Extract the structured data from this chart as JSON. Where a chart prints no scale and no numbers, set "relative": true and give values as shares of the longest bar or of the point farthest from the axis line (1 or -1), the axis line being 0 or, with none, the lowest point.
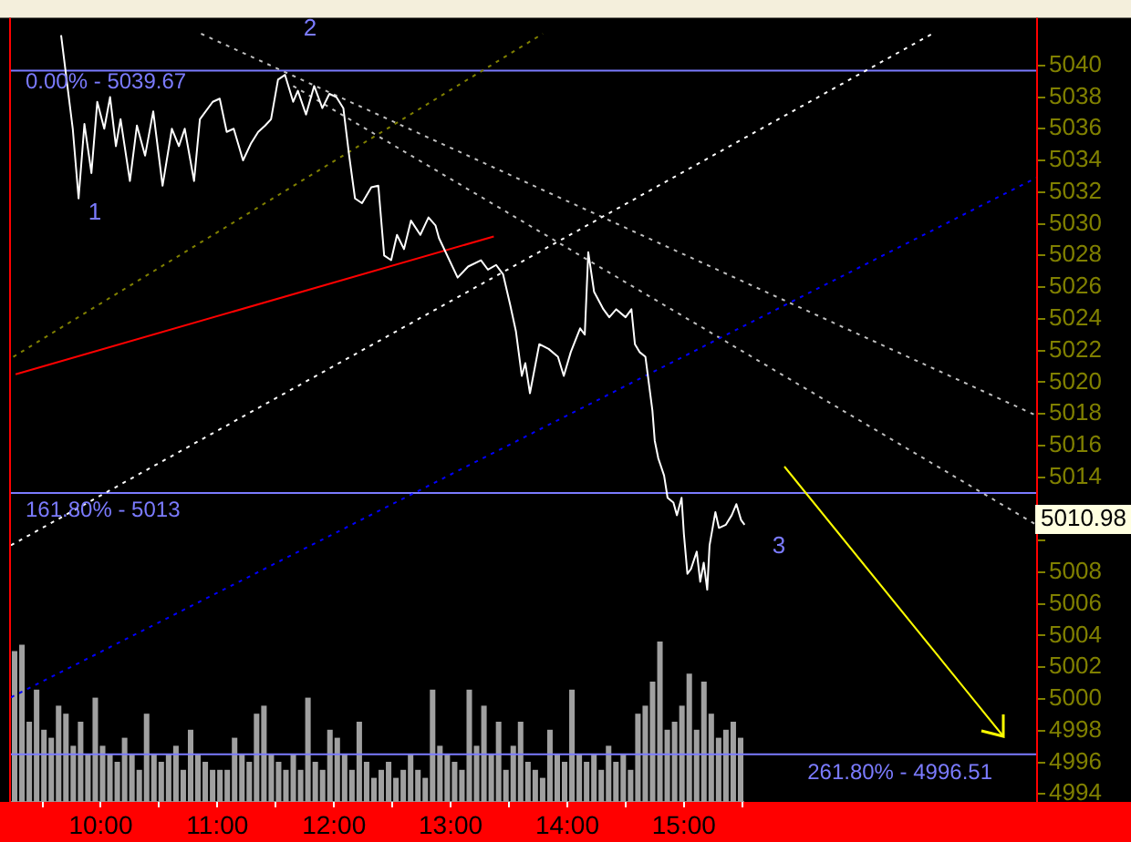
{
  "chart_data": [
    {
      "type": "line",
      "series": [
        {
          "color": "#ffffff",
          "x": [
            9.66,
            9.76,
            9.81,
            9.86,
            9.92,
            9.97,
            10.03,
            10.08,
            10.13,
            10.17,
            10.25,
            10.31,
            10.38,
            10.45,
            10.53,
            10.61,
            10.67,
            10.72,
            10.8,
            10.85,
            10.96,
            11.02,
            11.08,
            11.14,
            11.22,
            11.29,
            11.35,
            11.41,
            11.46,
            11.52,
            11.58,
            11.65,
            11.69,
            11.76,
            11.83,
            11.9,
            11.96,
            12.02,
            12.08,
            12.13,
            12.18,
            12.24,
            12.32,
            12.38,
            12.43,
            12.49,
            12.54,
            12.6,
            12.66,
            12.74,
            12.81,
            12.87,
            12.9,
            13.06,
            13.15,
            13.26,
            13.32,
            13.39,
            13.45,
            13.51,
            13.56,
            13.61,
            13.64,
            13.68,
            13.76,
            13.84,
            13.92,
            13.97,
            14.03,
            14.11,
            14.15,
            14.18,
            14.23,
            14.31,
            14.36,
            14.42,
            14.5,
            14.55,
            14.58,
            14.62,
            14.67,
            14.73,
            14.75,
            14.78,
            14.83,
            14.86,
            14.91,
            14.94,
            14.98,
            15.0,
            15.03,
            15.06,
            15.11,
            15.14,
            15.17,
            15.2,
            15.22,
            15.27,
            15.3,
            15.36,
            15.41,
            15.45,
            15.49,
            15.52
          ],
          "values": [
            5041.9,
            5036.0,
            5031.6,
            5036.3,
            5033.2,
            5037.7,
            5036.0,
            5038.0,
            5034.9,
            5036.6,
            5032.7,
            5036.2,
            5034.3,
            5037.1,
            5032.4,
            5036.0,
            5034.9,
            5036.0,
            5032.7,
            5036.6,
            5037.7,
            5037.9,
            5035.8,
            5036.0,
            5034.0,
            5035.1,
            5035.8,
            5036.2,
            5036.6,
            5039.1,
            5039.4,
            5037.7,
            5038.4,
            5036.9,
            5038.7,
            5037.3,
            5038.2,
            5038.0,
            5037.3,
            5034.3,
            5031.6,
            5031.3,
            5032.3,
            5032.4,
            5028.0,
            5027.7,
            5029.3,
            5028.4,
            5030.2,
            5029.3,
            5030.4,
            5029.9,
            5029.1,
            5026.6,
            5027.3,
            5027.7,
            5027.1,
            5027.4,
            5026.8,
            5024.9,
            5023.2,
            5020.4,
            5021.2,
            5019.3,
            5022.4,
            5022.1,
            5021.6,
            5020.4,
            5021.9,
            5023.4,
            5023.0,
            5028.2,
            5025.7,
            5024.6,
            5024.1,
            5024.6,
            5024.1,
            5024.6,
            5022.4,
            5021.9,
            5021.6,
            5018.2,
            5016.3,
            5015.2,
            5014.1,
            5012.7,
            5012.4,
            5011.6,
            5012.7,
            5010.4,
            5007.9,
            5008.2,
            5009.3,
            5007.4,
            5008.6,
            5006.9,
            5009.7,
            5011.8,
            5010.8,
            5011.0,
            5011.6,
            5012.3,
            5011.3,
            5011.0
          ]
        },
        {
          "type": "line",
          "color": "#ff0000",
          "x": [
            9.27,
            13.37
          ],
          "values": [
            5020.5,
            5029.2
          ]
        },
        {
          "type": "line",
          "color": "#808000",
          "line_style": "dotted",
          "x": [
            9.25,
            13.79
          ],
          "values": [
            5021.6,
            5042.0
          ]
        },
        {
          "type": "line",
          "color": "#ffffff",
          "line_style": "dotted",
          "x": [
            9.23,
            17.13
          ],
          "values": [
            5009.7,
            5042.0
          ]
        },
        {
          "type": "line",
          "color": "#0000ff",
          "line_style": "dotted",
          "x": [
            9.23,
            18.02
          ],
          "values": [
            5000.1,
            5032.9
          ]
        },
        {
          "type": "line",
          "color": "#c0c0c0",
          "line_style": "dotted",
          "x": [
            10.86,
            18.02
          ],
          "values": [
            5042.0,
            5017.9
          ]
        },
        {
          "type": "line",
          "color": "#c0c0c0",
          "line_style": "dotted",
          "x": [
            11.65,
            18.02
          ],
          "values": [
            5038.7,
            5011.0
          ]
        }
      ],
      "xlim": [
        9.23,
        18.02
      ],
      "xticks": [
        {
          "value": 9.5,
          "label": null
        },
        {
          "value": 10,
          "label": "10:00"
        },
        {
          "value": 10.5,
          "label": null
        },
        {
          "value": 11,
          "label": "11:00"
        },
        {
          "value": 11.5,
          "label": null
        },
        {
          "value": 12,
          "label": "12:00"
        },
        {
          "value": 12.5,
          "label": null
        },
        {
          "value": 13,
          "label": "13:00"
        },
        {
          "value": 13.5,
          "label": null
        },
        {
          "value": 14,
          "label": "14:00"
        },
        {
          "value": 14.5,
          "label": null
        },
        {
          "value": 15,
          "label": "15:00"
        },
        {
          "value": 15.5,
          "label": null
        }
      ],
      "ylim": [
        4993.5,
        5043
      ],
      "yticks": [
        4994,
        4996,
        4998,
        5000,
        5002,
        5004,
        5006,
        5008,
        {
          "value": 5010,
          "label": null
        },
        {
          "value": 5012,
          "label": null
        },
        5014,
        5016,
        5018,
        5020,
        5022,
        5024,
        5026,
        5028,
        5030,
        5032,
        5034,
        5036,
        5038,
        5040
      ],
      "ref_lines": [
        {
          "axis": "y",
          "value": 5039.67,
          "color": "#7b7bff"
        },
        {
          "axis": "y",
          "value": 5013,
          "color": "#7b7bff"
        },
        {
          "axis": "y",
          "value": 4996.51,
          "color": "#7b7bff"
        }
      ],
      "annotations": [
        "1",
        "2",
        "3",
        "5010.98",
        "0.00% - 5039.67",
        "161.80% - 5013",
        "261.80% - 4996.51"
      ],
      "grid": false,
      "legend": false,
      "marker": "none"
    },
    {
      "type": "bar",
      "relative": true,
      "color": "#a0a0a0",
      "categories": [
        null,
        null,
        null,
        null,
        null,
        null,
        null,
        null,
        null,
        null,
        null,
        null,
        null,
        null,
        null,
        null,
        null,
        null,
        null,
        null,
        null,
        null,
        null,
        null,
        null,
        null,
        null,
        null,
        null,
        null,
        null,
        null,
        null,
        null,
        null,
        null,
        null,
        null,
        null,
        null,
        null,
        null,
        null,
        null,
        null,
        null,
        null,
        null,
        null,
        null,
        null,
        null,
        null,
        null,
        null,
        null,
        null,
        null,
        null,
        null,
        null,
        null,
        null,
        null,
        null,
        null,
        null,
        null,
        null,
        null,
        null,
        null,
        null,
        null,
        null,
        null,
        null,
        null,
        null,
        null,
        null,
        null,
        null,
        null,
        null,
        null,
        null,
        null,
        null,
        null,
        null,
        null,
        null,
        null,
        null,
        null,
        null,
        null,
        null,
        null
      ],
      "values": [
        0.94,
        0.98,
        0.5,
        0.7,
        0.45,
        0.4,
        0.6,
        0.55,
        0.35,
        0.5,
        0.3,
        0.65,
        0.35,
        0.3,
        0.25,
        0.4,
        0.3,
        0.2,
        0.55,
        0.3,
        0.25,
        0.3,
        0.35,
        0.2,
        0.45,
        0.3,
        0.25,
        0.2,
        0.2,
        0.2,
        0.4,
        0.3,
        0.25,
        0.55,
        0.6,
        0.3,
        0.25,
        0.2,
        0.3,
        0.2,
        0.65,
        0.25,
        0.2,
        0.45,
        0.4,
        0.3,
        0.2,
        0.5,
        0.25,
        0.15,
        0.2,
        0.25,
        0.15,
        0.2,
        0.3,
        0.2,
        0.15,
        0.7,
        0.35,
        0.3,
        0.25,
        0.2,
        0.7,
        0.35,
        0.6,
        0.3,
        0.5,
        0.2,
        0.35,
        0.5,
        0.25,
        0.2,
        0.15,
        0.45,
        0.3,
        0.25,
        0.7,
        0.3,
        0.25,
        0.3,
        0.2,
        0.35,
        0.25,
        0.3,
        0.2,
        0.55,
        0.6,
        0.75,
        1.0,
        0.45,
        0.5,
        0.6,
        0.8,
        0.45,
        0.75,
        0.55,
        0.4,
        0.45,
        0.5,
        0.4
      ],
      "grid": false,
      "legend": false
    }
  ]
}
